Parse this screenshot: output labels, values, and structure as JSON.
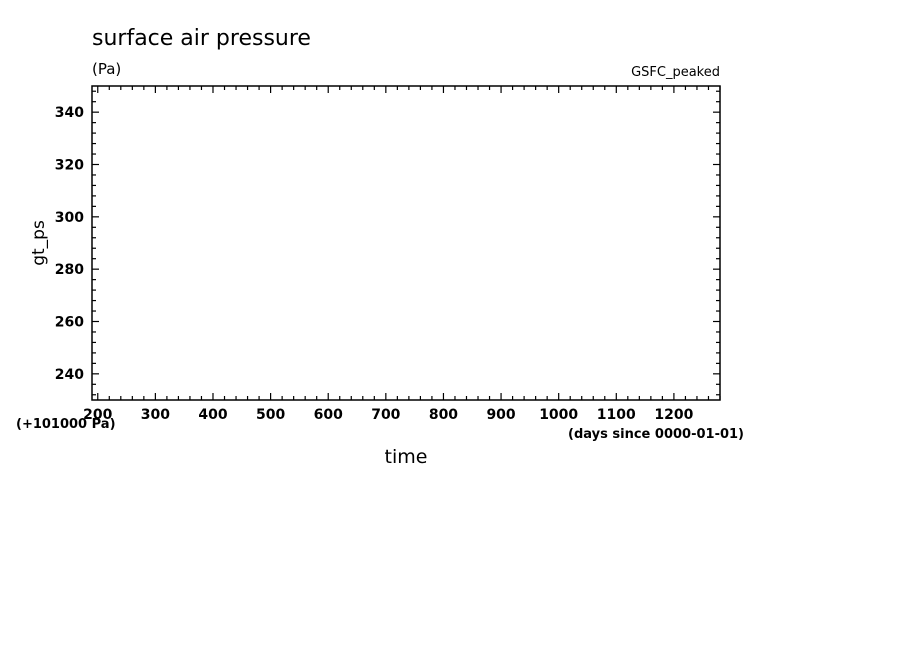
{
  "chart_data": {
    "type": "line",
    "title": "surface air pressure",
    "units": "(Pa)",
    "tag": "GSFC_peaked",
    "xlabel": "time",
    "x_units": "(days since 0000-01-01)",
    "ylabel": "gt_ps",
    "y_offset_label": "(+101000 Pa)",
    "xlim": [
      190,
      1280
    ],
    "ylim": [
      230,
      350
    ],
    "x_ticks": [
      200,
      300,
      400,
      500,
      600,
      700,
      800,
      900,
      1000,
      1100,
      1200
    ],
    "y_ticks": [
      240,
      260,
      280,
      300,
      320,
      340
    ],
    "series": []
  }
}
